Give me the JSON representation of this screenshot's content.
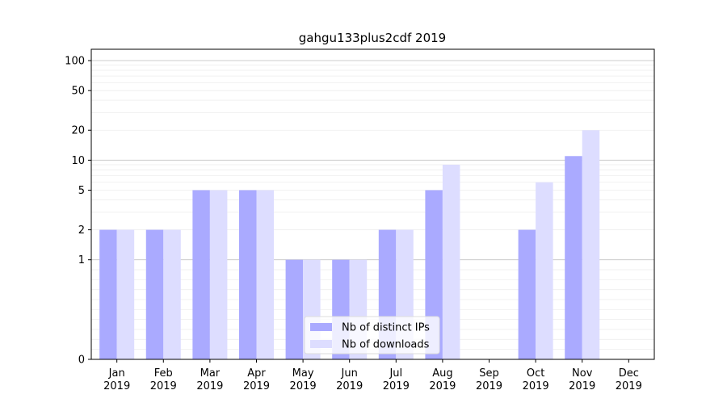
{
  "chart_data": {
    "type": "bar",
    "title": "gahgu133plus2cdf 2019",
    "xlabel": "",
    "ylabel": "",
    "yscale": "symlog",
    "ylim": [
      0,
      130
    ],
    "categories": [
      "Jan\n2019",
      "Feb\n2019",
      "Mar\n2019",
      "Apr\n2019",
      "May\n2019",
      "Jun\n2019",
      "Jul\n2019",
      "Aug\n2019",
      "Sep\n2019",
      "Oct\n2019",
      "Nov\n2019",
      "Dec\n2019"
    ],
    "y_ticks": [
      0,
      1,
      2,
      5,
      10,
      20,
      50,
      100
    ],
    "y_tick_labels": [
      "0",
      "1",
      "2",
      "5",
      "10",
      "20",
      "50",
      "100"
    ],
    "series": [
      {
        "name": "Nb of distinct IPs",
        "color": "#aaaaff",
        "values": [
          2,
          2,
          5,
          5,
          1,
          1,
          2,
          5,
          0,
          2,
          11,
          0
        ]
      },
      {
        "name": "Nb of downloads",
        "color": "#ddddff",
        "values": [
          2,
          2,
          5,
          5,
          1,
          1,
          2,
          9,
          0,
          6,
          20,
          0
        ]
      }
    ],
    "legend_position": "bottom-center",
    "grid": true
  }
}
